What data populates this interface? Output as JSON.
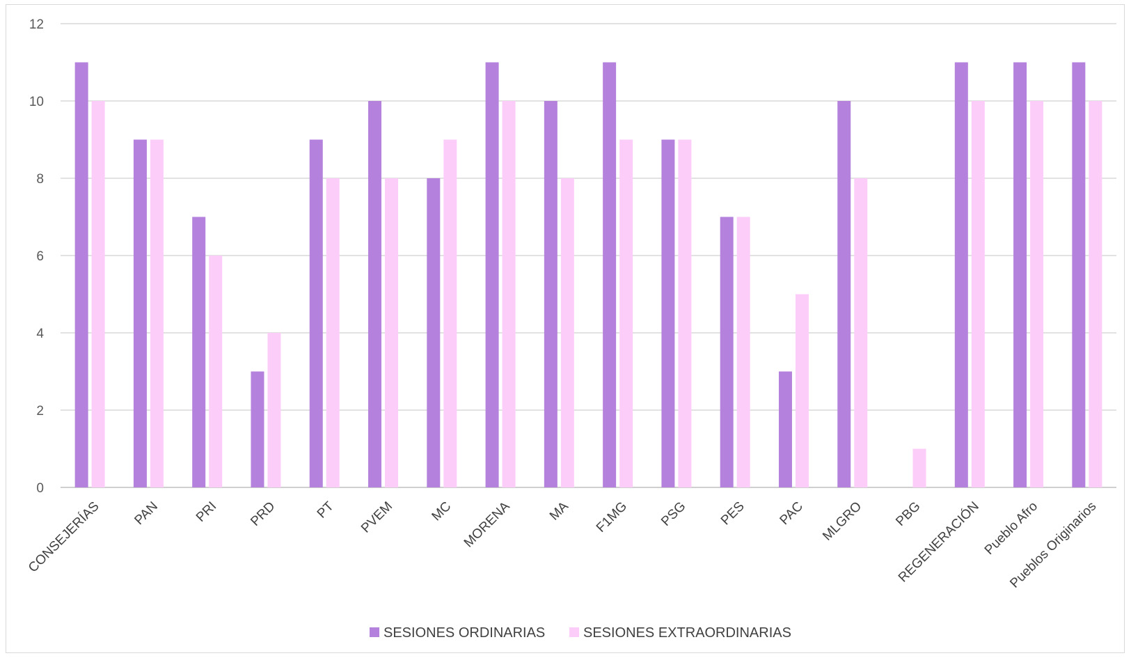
{
  "chart_data": {
    "type": "bar",
    "title": "",
    "xlabel": "",
    "ylabel": "",
    "ylim": [
      0,
      12
    ],
    "yticks": [
      0,
      2,
      4,
      6,
      8,
      10,
      12
    ],
    "grid": true,
    "legend_position": "bottom",
    "categories": [
      "CONSEJERÍAS",
      "PAN",
      "PRI",
      "PRD",
      "PT",
      "PVEM",
      "MC",
      "MORENA",
      "MA",
      "F1MG",
      "PSG",
      "PES",
      "PAC",
      "MLGRO",
      "PBG",
      "REGENERACIÓN",
      "Pueblo Afro",
      "Pueblos Originarios"
    ],
    "series": [
      {
        "name": "SESIONES ORDINARIAS",
        "color": "#b482dc",
        "values": [
          11,
          9,
          7,
          3,
          9,
          10,
          8,
          11,
          10,
          11,
          9,
          7,
          3,
          10,
          0,
          11,
          11,
          11
        ]
      },
      {
        "name": "SESIONES EXTRAORDINARIAS",
        "color": "#fdcdfa",
        "values": [
          10,
          9,
          6,
          4,
          8,
          8,
          9,
          10,
          8,
          9,
          9,
          7,
          5,
          8,
          1,
          10,
          10,
          10
        ]
      }
    ]
  }
}
